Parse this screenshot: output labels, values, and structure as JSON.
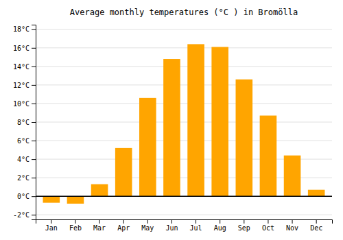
{
  "chart_data": {
    "type": "bar",
    "title": "Average monthly temperatures (°C ) in Bromölla",
    "categories": [
      "Jan",
      "Feb",
      "Mar",
      "Apr",
      "May",
      "Jun",
      "Jul",
      "Aug",
      "Sep",
      "Oct",
      "Nov",
      "Dec"
    ],
    "values": [
      -0.7,
      -0.8,
      1.3,
      5.2,
      10.6,
      14.8,
      16.4,
      16.1,
      12.6,
      8.7,
      4.4,
      0.7
    ],
    "color": "#FFA500",
    "ylim": [
      -2.5,
      18.5
    ],
    "yticks": [
      {
        "value": -2,
        "label": "-2°C"
      },
      {
        "value": 0,
        "label": "0°C"
      },
      {
        "value": 2,
        "label": "2°C"
      },
      {
        "value": 4,
        "label": "4°C"
      },
      {
        "value": 6,
        "label": "6°C"
      },
      {
        "value": 8,
        "label": "8°C"
      },
      {
        "value": 10,
        "label": "10°C"
      },
      {
        "value": 12,
        "label": "12°C"
      },
      {
        "value": 14,
        "label": "14°C"
      },
      {
        "value": 16,
        "label": "16°C"
      },
      {
        "value": 18,
        "label": "18°C"
      }
    ],
    "grid": true
  }
}
